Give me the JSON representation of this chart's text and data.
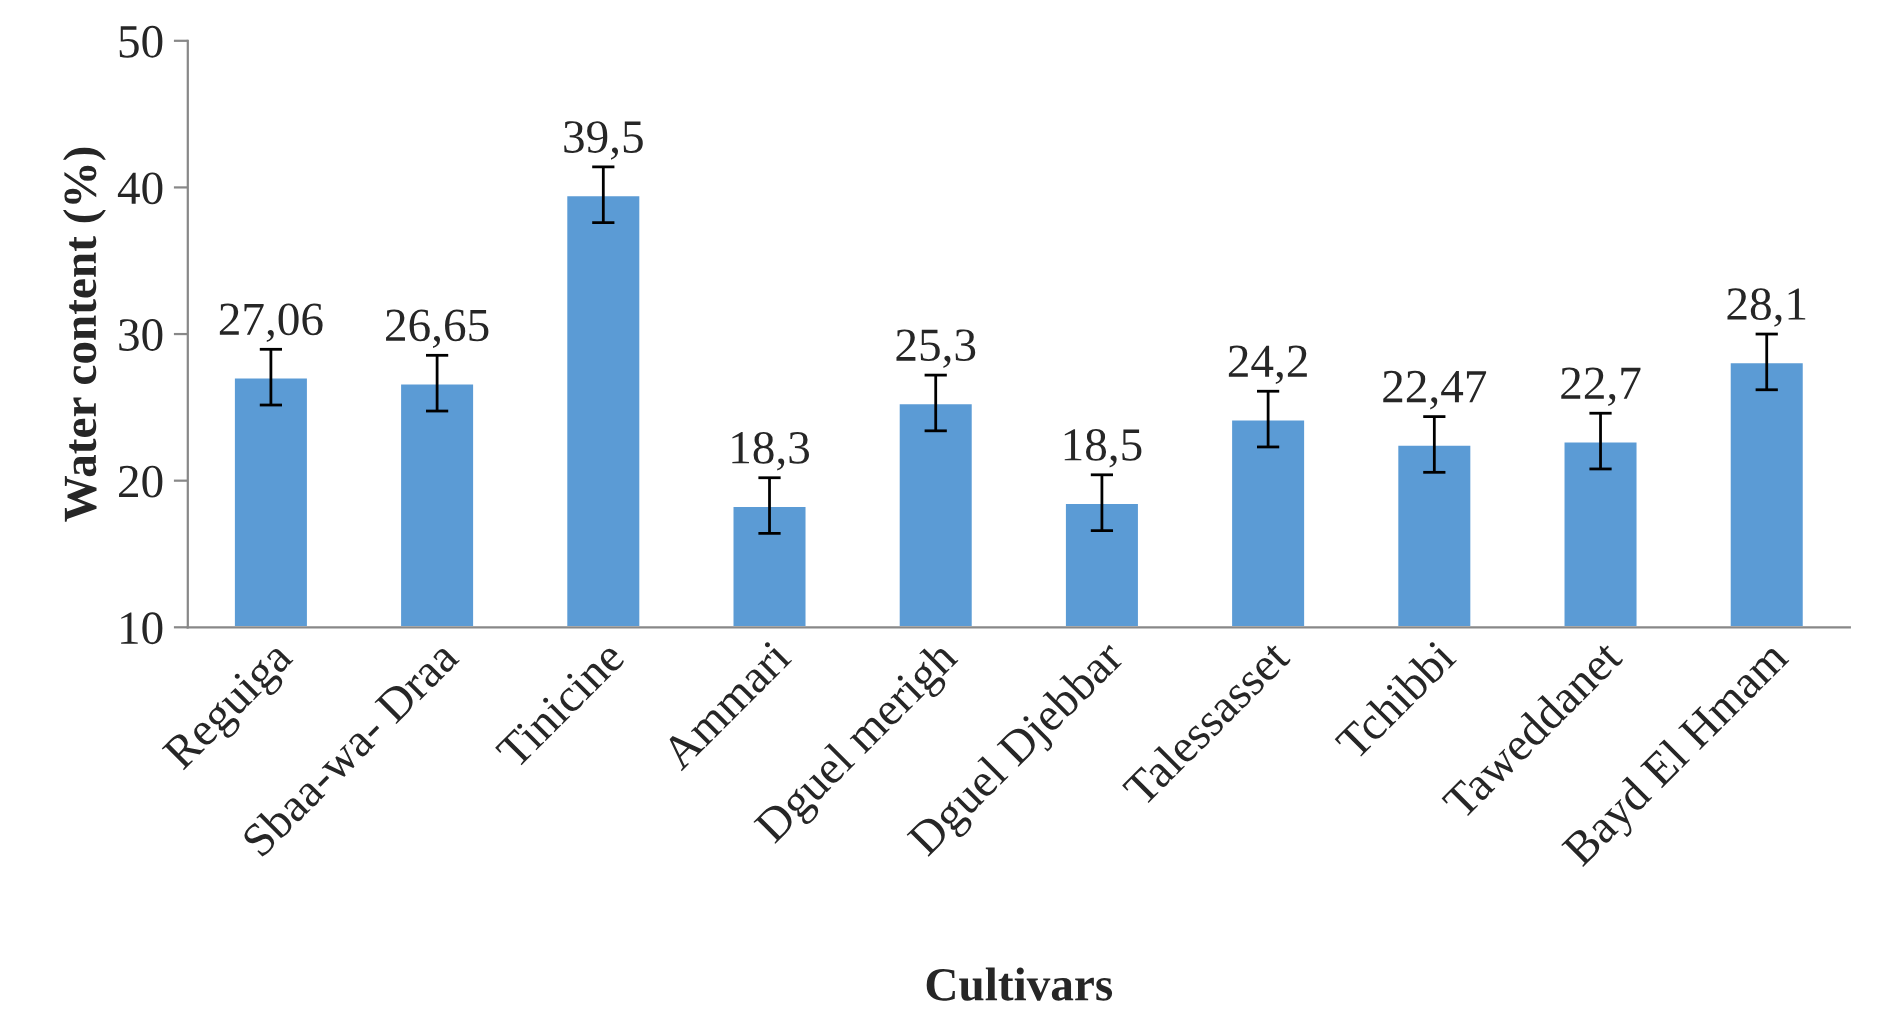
{
  "chart_data": {
    "type": "bar",
    "xlabel": "Cultivars",
    "ylabel": "Water content (%)",
    "categories": [
      "Reguiga",
      "Sbaa-wa- Draa",
      "Tinicine",
      "Ammari",
      "Dguel merigh",
      "Dguel Djebbar",
      "Talessasset",
      "Tchibbi",
      "Taweddanet",
      "Bayd El Hmam"
    ],
    "values": [
      27.06,
      26.65,
      39.5,
      18.3,
      25.3,
      18.5,
      24.2,
      22.47,
      22.7,
      28.1
    ],
    "value_labels": [
      "27,06",
      "26,65",
      "39,5",
      "18,3",
      "25,3",
      "18,5",
      "24,2",
      "22,47",
      "22,7",
      "28,1"
    ],
    "errors": [
      1.9,
      1.9,
      1.9,
      1.9,
      1.9,
      1.9,
      1.9,
      1.9,
      1.9,
      1.9
    ],
    "color": "#5b9bd5",
    "ylim": [
      10,
      50
    ],
    "yticks": [
      10,
      20,
      30,
      40,
      50
    ],
    "grid": false
  }
}
